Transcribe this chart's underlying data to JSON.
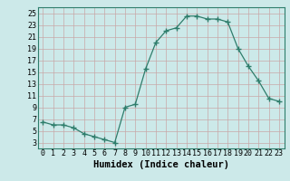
{
  "x": [
    0,
    1,
    2,
    3,
    4,
    5,
    6,
    7,
    8,
    9,
    10,
    11,
    12,
    13,
    14,
    15,
    16,
    17,
    18,
    19,
    20,
    21,
    22,
    23
  ],
  "y": [
    6.5,
    6.0,
    6.0,
    5.5,
    4.5,
    4.0,
    3.5,
    3.0,
    9.0,
    9.5,
    15.5,
    20.0,
    22.0,
    22.5,
    24.5,
    24.5,
    24.0,
    24.0,
    23.5,
    19.0,
    16.0,
    13.5,
    10.5,
    10.0
  ],
  "xlabel": "Humidex (Indice chaleur)",
  "xlim": [
    -0.5,
    23.5
  ],
  "ylim": [
    2,
    26
  ],
  "yticks": [
    3,
    5,
    7,
    9,
    11,
    13,
    15,
    17,
    19,
    21,
    23,
    25
  ],
  "xticks": [
    0,
    1,
    2,
    3,
    4,
    5,
    6,
    7,
    8,
    9,
    10,
    11,
    12,
    13,
    14,
    15,
    16,
    17,
    18,
    19,
    20,
    21,
    22,
    23
  ],
  "line_color": "#2e7d6b",
  "marker": "+",
  "marker_size": 4,
  "bg_color": "#cce9e9",
  "grid_color": "#b0d0d0",
  "xlabel_fontsize": 7.5,
  "tick_fontsize": 6
}
